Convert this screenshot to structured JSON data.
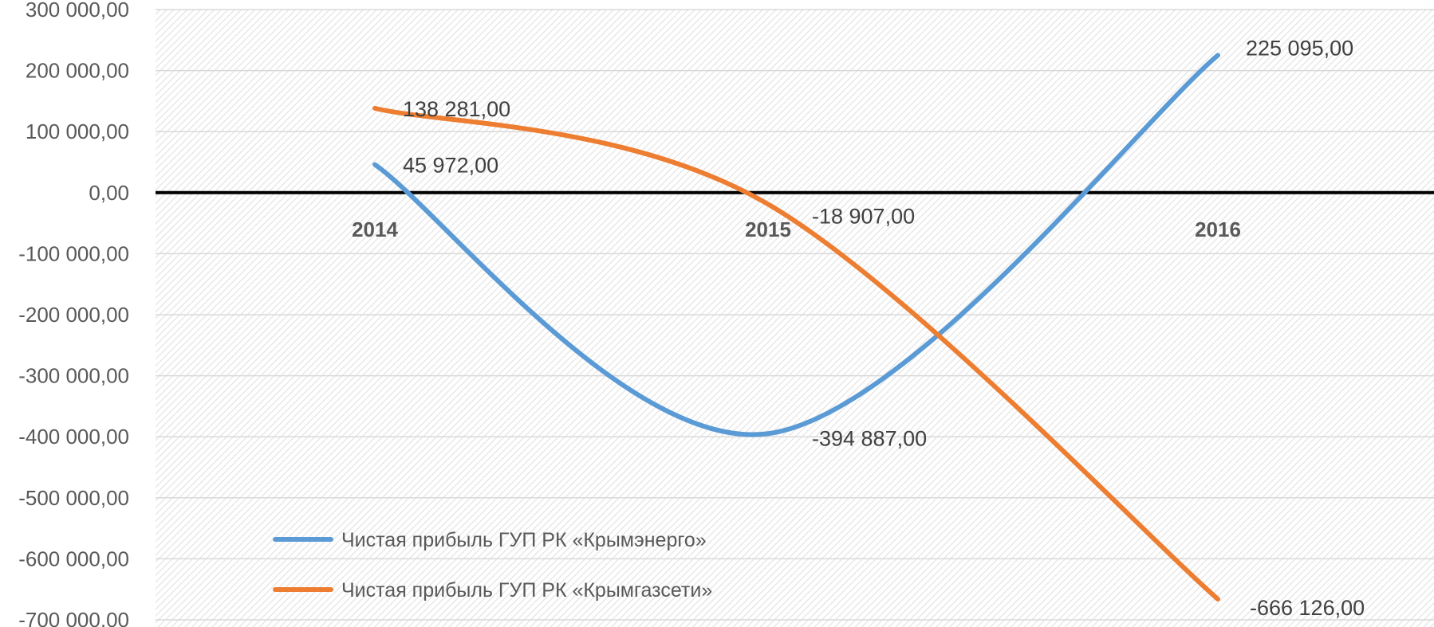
{
  "chart_data": {
    "type": "line",
    "title": "",
    "xlabel": "",
    "ylabel": "",
    "categories": [
      "2014",
      "2015",
      "2016"
    ],
    "series": [
      {
        "name": "Чистая прибыль ГУП РК «Крымэнерго»",
        "values": [
          45972,
          -394887,
          225095
        ],
        "labels": [
          "45 972,00",
          "-394 887,00",
          "225 095,00"
        ],
        "color": "#5B9BD5"
      },
      {
        "name": "Чистая прибыль ГУП РК «Крымгазсети»",
        "values": [
          138281,
          -18907,
          -666126
        ],
        "labels": [
          "138 281,00",
          "-18 907,00",
          "-666 126,00"
        ],
        "color": "#ED7D31"
      }
    ],
    "ylim": [
      -700000,
      300000
    ],
    "yticks": [
      300000,
      200000,
      100000,
      0,
      -100000,
      -200000,
      -300000,
      -400000,
      -500000,
      -600000,
      -700000
    ],
    "ytick_labels": [
      "300 000,00",
      "200 000,00",
      "100 000,00",
      "0,00",
      "-100 000,00",
      "-200 000,00",
      "-300 000,00",
      "-400 000,00",
      "-500 000,00",
      "-600 000,00",
      "-700 000,00"
    ],
    "grid": true,
    "legend": "bottom-left",
    "line_style": "smoothed"
  }
}
